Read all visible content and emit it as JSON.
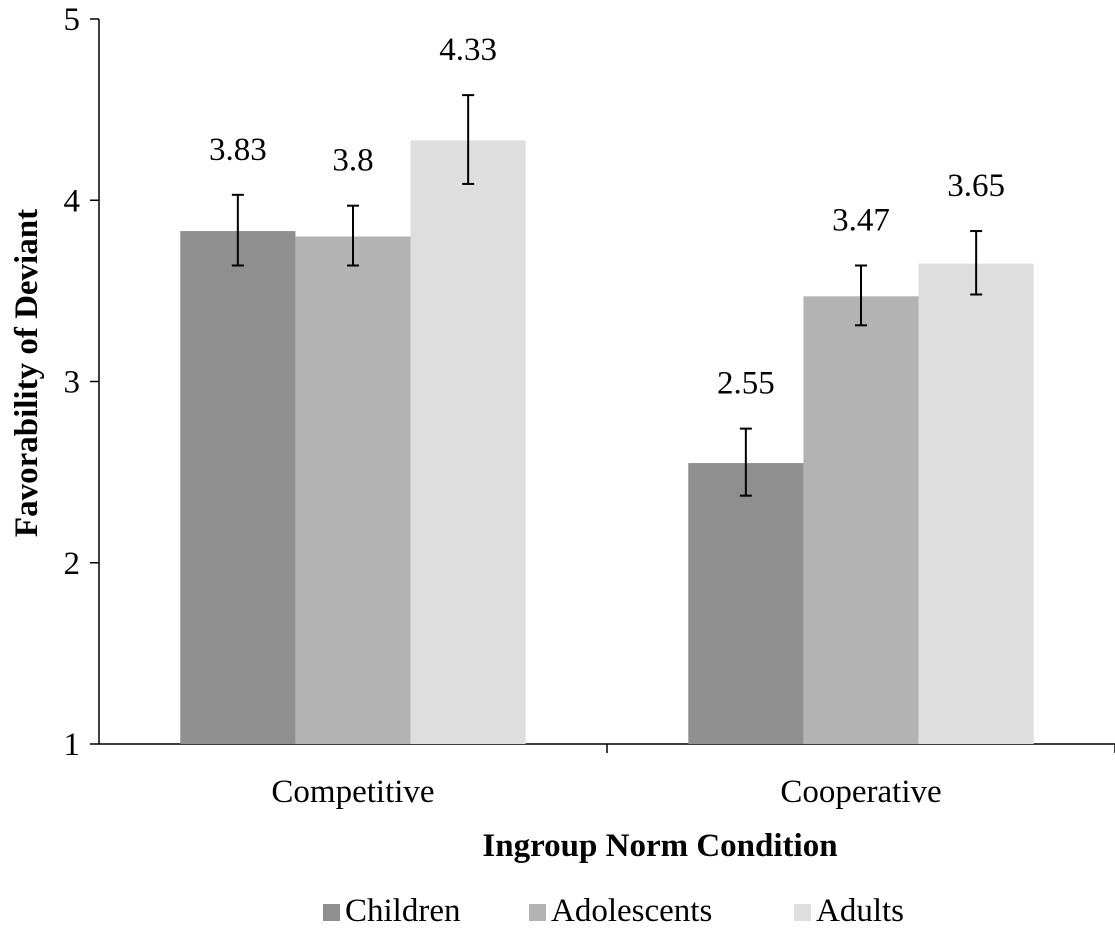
{
  "chart_data": {
    "type": "bar",
    "title": "",
    "xlabel": "Ingroup Norm Condition",
    "ylabel": "Favorability of Deviant",
    "ylim": [
      1,
      5
    ],
    "yticks": [
      1,
      2,
      3,
      4,
      5
    ],
    "categories": [
      "Competitive",
      "Cooperative"
    ],
    "series": [
      {
        "name": "Children",
        "color": "#8f8f8f",
        "values": [
          3.83,
          2.55
        ],
        "error_low": [
          3.64,
          2.37
        ],
        "error_high": [
          4.03,
          2.74
        ],
        "labels": [
          "3.83",
          "2.55"
        ]
      },
      {
        "name": "Adolescents",
        "color": "#b3b3b3",
        "values": [
          3.8,
          3.47
        ],
        "error_low": [
          3.64,
          3.31
        ],
        "error_high": [
          3.97,
          3.64
        ],
        "labels": [
          "3.8",
          "3.47"
        ]
      },
      {
        "name": "Adults",
        "color": "#dedede",
        "values": [
          4.33,
          3.65
        ],
        "error_low": [
          4.09,
          3.48
        ],
        "error_high": [
          4.58,
          3.83
        ],
        "labels": [
          "4.33",
          "3.65"
        ]
      }
    ],
    "legend_position": "bottom",
    "grid": false
  }
}
